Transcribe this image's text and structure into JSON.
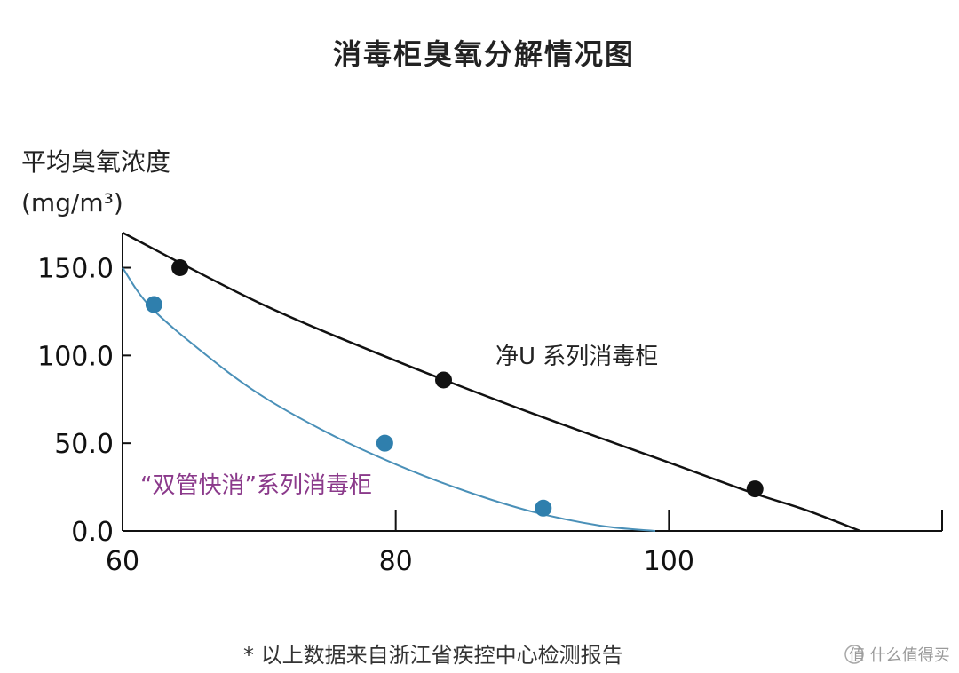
{
  "chart_data": {
    "type": "line",
    "title": "消毒柜臭氧分解情况图",
    "ylabel_line1": "平均臭氧浓度",
    "ylabel_line2": "(mg/m³)",
    "xlabel": "",
    "xlim": [
      60,
      120
    ],
    "ylim": [
      0,
      170
    ],
    "x_ticks": [
      {
        "value": 60,
        "label": "60"
      },
      {
        "value": 80,
        "label": "80"
      },
      {
        "value": 100,
        "label": "100"
      }
    ],
    "y_ticks": [
      {
        "value": 0,
        "label": "0.0"
      },
      {
        "value": 50,
        "label": "50.0"
      },
      {
        "value": 100,
        "label": "100.0"
      },
      {
        "value": 150,
        "label": "150.0"
      }
    ],
    "grid": false,
    "series": [
      {
        "name": "净U 系列消毒柜",
        "color": "#111111",
        "label_color": "#222222",
        "curve": [
          [
            60,
            170
          ],
          [
            70,
            130
          ],
          [
            80,
            97
          ],
          [
            90,
            67
          ],
          [
            100,
            39
          ],
          [
            106,
            22
          ],
          [
            110,
            12
          ],
          [
            114,
            0
          ]
        ],
        "points": [
          [
            64.2,
            150
          ],
          [
            83.5,
            86
          ],
          [
            106.3,
            24
          ]
        ]
      },
      {
        "name": "“双管快消”系列消毒柜",
        "color": "#4a90b8",
        "marker_color": "#2f7fad",
        "label_color": "#8b3a8b",
        "curve": [
          [
            60,
            150
          ],
          [
            62,
            128
          ],
          [
            66,
            101
          ],
          [
            70,
            78
          ],
          [
            75,
            56
          ],
          [
            80,
            38
          ],
          [
            85,
            23
          ],
          [
            90,
            11
          ],
          [
            95,
            3
          ],
          [
            99,
            0
          ]
        ],
        "points": [
          [
            62.3,
            129
          ],
          [
            79.2,
            50
          ],
          [
            90.8,
            13
          ]
        ]
      }
    ]
  },
  "footnote": "*  以上数据来自浙江省疾控中心检测报告",
  "watermark": "值 什么值得买"
}
